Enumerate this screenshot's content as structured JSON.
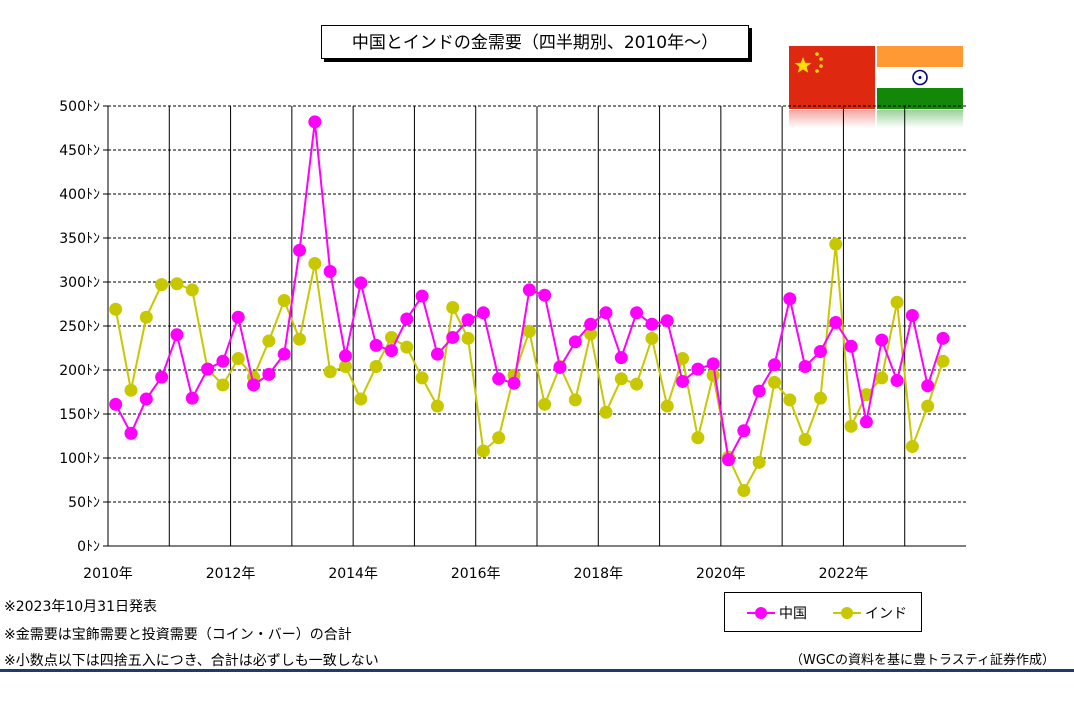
{
  "title": "中国とインドの金需要（四半期別、2010年～）",
  "colors": {
    "china": "#ff00ff",
    "india": "#c8c800",
    "china_flag": "#de2910",
    "china_star": "#ffde00",
    "india_saffron": "#ff9933",
    "india_green": "#138808",
    "india_chakra": "#000080"
  },
  "flags": {
    "china_icon": "china-flag-icon",
    "india_icon": "india-flag-icon"
  },
  "notes": {
    "line1": "※2023年10月31日発表",
    "line2": "※金需要は宝飾需要と投資需要（コイン・バー）の合計",
    "line3": "※小数点以下は四捨五入につき、合計は必ずしも一致しない"
  },
  "source": "（WGCの資料を基に豊トラスティ証券作成）",
  "legend": {
    "china": "中国",
    "india": "インド"
  },
  "chart_data": {
    "type": "line",
    "x_tick_labels": [
      "2010年",
      "2012年",
      "2014年",
      "2016年",
      "2018年",
      "2020年",
      "2022年"
    ],
    "y_tick_labels": [
      "0ﾄﾝ",
      "50ﾄﾝ",
      "100ﾄﾝ",
      "150ﾄﾝ",
      "200ﾄﾝ",
      "250ﾄﾝ",
      "300ﾄﾝ",
      "350ﾄﾝ",
      "400ﾄﾝ",
      "450ﾄﾝ",
      "500ﾄﾝ"
    ],
    "ylim": [
      0,
      500
    ],
    "x_start": "2010-Q1",
    "x_end": "2023-Q3",
    "grid": true,
    "legend_position": "bottom-right",
    "series": [
      {
        "name": "中国",
        "color_key": "china",
        "values": [
          161,
          128,
          167,
          192,
          240,
          168,
          201,
          210,
          260,
          183,
          195,
          218,
          336,
          482,
          312,
          216,
          299,
          228,
          222,
          258,
          284,
          218,
          237,
          257,
          265,
          190,
          185,
          291,
          285,
          203,
          232,
          252,
          265,
          214,
          265,
          252,
          256,
          187,
          201,
          207,
          98,
          131,
          176,
          206,
          281,
          204,
          221,
          254,
          227,
          141,
          234,
          188,
          262,
          182,
          236
        ]
      },
      {
        "name": "インド",
        "color_key": "india",
        "values": [
          269,
          177,
          260,
          297,
          298,
          291,
          201,
          183,
          213,
          192,
          233,
          279,
          235,
          321,
          198,
          204,
          167,
          204,
          237,
          226,
          191,
          159,
          271,
          236,
          108,
          123,
          194,
          244,
          161,
          204,
          166,
          241,
          152,
          190,
          184,
          236,
          159,
          213,
          123,
          194,
          101,
          63,
          95,
          186,
          166,
          121,
          168,
          343,
          136,
          172,
          191,
          277,
          113,
          159,
          210
        ]
      }
    ]
  }
}
